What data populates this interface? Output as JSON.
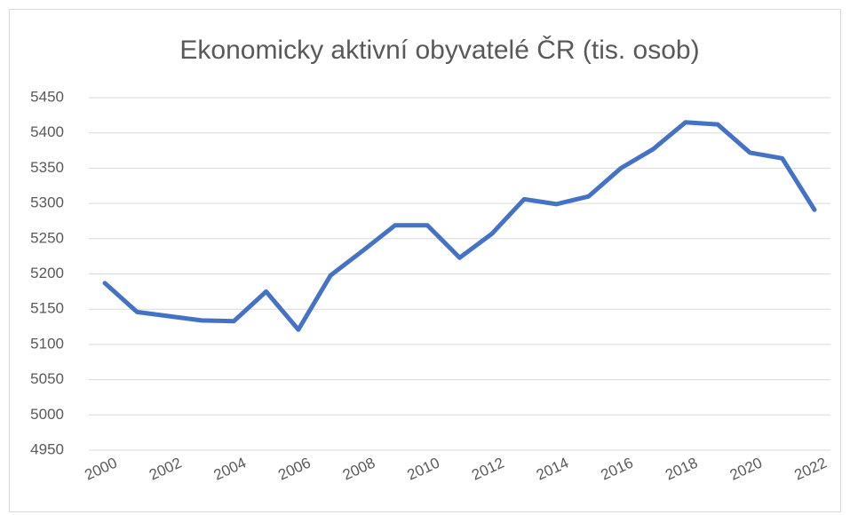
{
  "chart_data": {
    "type": "line",
    "title": "Ekonomicky aktivní obyvatelé ČR (tis. osob)",
    "x": [
      2000,
      2001,
      2002,
      2003,
      2004,
      2005,
      2006,
      2007,
      2008,
      2009,
      2010,
      2011,
      2012,
      2013,
      2014,
      2015,
      2016,
      2017,
      2018,
      2019,
      2020,
      2021,
      2022
    ],
    "series": [
      {
        "name": "Ekonomicky aktivní obyvatelé",
        "color": "#4472c4",
        "values": [
          5187,
          5146,
          5140,
          5134,
          5133,
          5175,
          5121,
          5198,
          5233,
          5269,
          5269,
          5223,
          5257,
          5306,
          5299,
          5310,
          5350,
          5377,
          5415,
          5412,
          5372,
          5364,
          5291
        ]
      }
    ],
    "xlim": [
      2000,
      2022
    ],
    "xticks": [
      2000,
      2002,
      2004,
      2006,
      2008,
      2010,
      2012,
      2014,
      2016,
      2018,
      2020,
      2022
    ],
    "ylim": [
      4950,
      5450
    ],
    "yticks": [
      4950,
      5000,
      5050,
      5100,
      5150,
      5200,
      5250,
      5300,
      5350,
      5400,
      5450
    ],
    "grid": true
  }
}
